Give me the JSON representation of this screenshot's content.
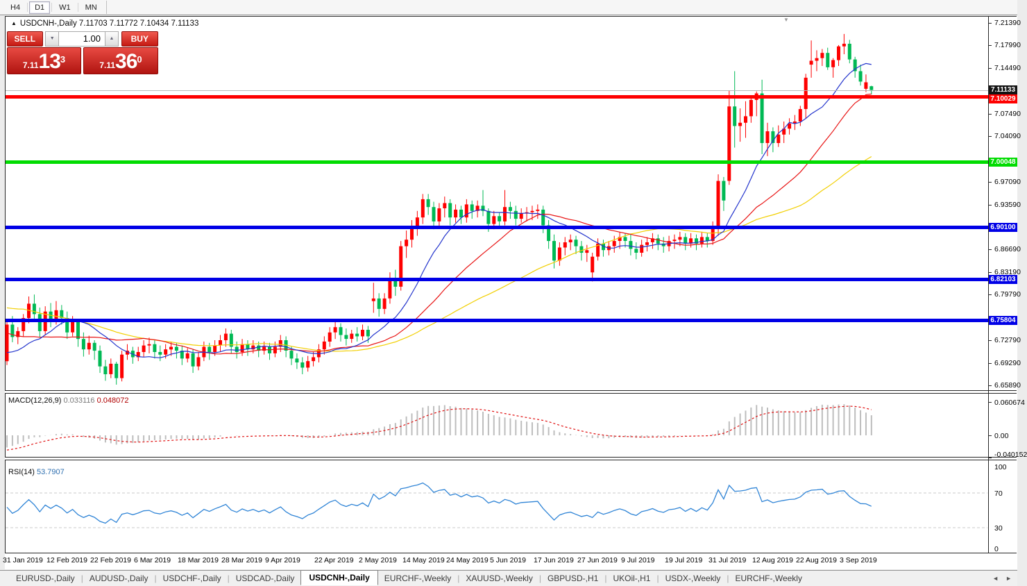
{
  "toolbar": {
    "timeframes": [
      {
        "label": "H4",
        "active": false
      },
      {
        "label": "D1",
        "active": true
      },
      {
        "label": "W1",
        "active": false
      },
      {
        "label": "MN",
        "active": false
      }
    ]
  },
  "chart": {
    "ohlc_line": "USDCNH-,Daily 7.11703 7.11772 7.10434 7.11133",
    "shift_marker_icon": "▼",
    "trade_panel": {
      "sell_label": "SELL",
      "buy_label": "BUY",
      "volume": "1.00",
      "spin_down_icon": "▼",
      "spin_up_icon": "▲",
      "sell_price": {
        "small": "7.11",
        "big": "13",
        "sup": "3"
      },
      "buy_price": {
        "small": "7.11",
        "big": "36",
        "sup": "0"
      }
    }
  },
  "price_axis": {
    "ticks": [
      {
        "label": "7.21390",
        "value": 7.2139
      },
      {
        "label": "7.17990",
        "value": 7.1799
      },
      {
        "label": "7.14490",
        "value": 7.1449
      },
      {
        "label": "7.07490",
        "value": 7.0749
      },
      {
        "label": "7.04090",
        "value": 7.0409
      },
      {
        "label": "6.97090",
        "value": 6.9709
      },
      {
        "label": "6.93590",
        "value": 6.9359
      },
      {
        "label": "6.86690",
        "value": 6.8669
      },
      {
        "label": "6.83190",
        "value": 6.8319
      },
      {
        "label": "6.79790",
        "value": 6.7979
      },
      {
        "label": "6.72790",
        "value": 6.7279
      },
      {
        "label": "6.69290",
        "value": 6.6929
      },
      {
        "label": "6.65890",
        "value": 6.6589
      }
    ],
    "current": {
      "label": "7.11133",
      "value": 7.11133,
      "badge_color": "#141414",
      "line_color": "#b8b8b8"
    }
  },
  "hlines": [
    {
      "label": "7.10029",
      "value": 7.10029,
      "color": "#fe0000",
      "thickness": 5
    },
    {
      "label": "7.00048",
      "value": 7.00048,
      "color": "#00dc00",
      "thickness": 5
    },
    {
      "label": "6.90100",
      "value": 6.901,
      "color": "#0000e6",
      "thickness": 5
    },
    {
      "label": "6.82103",
      "value": 6.82103,
      "color": "#0000e6",
      "thickness": 5
    },
    {
      "label": "6.75804",
      "value": 6.75804,
      "color": "#0000e6",
      "thickness": 5
    }
  ],
  "macd": {
    "label": "MACD(12,26,9)",
    "main_value": "0.033116",
    "signal_value": "0.048072",
    "axis": [
      {
        "label": "0.060674",
        "value": 0.060674
      },
      {
        "label": "0.00",
        "value": 0
      },
      {
        "label": "-0.040152",
        "value": -0.040152
      }
    ],
    "bar_color": "#bdbdbd",
    "signal_color": "#e01010"
  },
  "rsi": {
    "label": "RSI(14)",
    "value": "53.7907",
    "axis": [
      {
        "label": "100",
        "value": 100
      },
      {
        "label": "70",
        "value": 70
      },
      {
        "label": "30",
        "value": 30
      },
      {
        "label": "0",
        "value": 0
      }
    ],
    "levels": [
      70,
      30
    ],
    "line_color": "#2f84d6",
    "level_color": "#c8c8c8"
  },
  "date_axis": [
    {
      "label": "31 Jan 2019",
      "index": 0
    },
    {
      "label": "12 Feb 2019",
      "index": 8
    },
    {
      "label": "22 Feb 2019",
      "index": 16
    },
    {
      "label": "6 Mar 2019",
      "index": 24
    },
    {
      "label": "18 Mar 2019",
      "index": 32
    },
    {
      "label": "28 Mar 2019",
      "index": 40
    },
    {
      "label": "9 Apr 2019",
      "index": 48
    },
    {
      "label": "22 Apr 2019",
      "index": 57
    },
    {
      "label": "2 May 2019",
      "index": 65
    },
    {
      "label": "14 May 2019",
      "index": 73
    },
    {
      "label": "24 May 2019",
      "index": 81
    },
    {
      "label": "5 Jun 2019",
      "index": 89
    },
    {
      "label": "17 Jun 2019",
      "index": 97
    },
    {
      "label": "27 Jun 2019",
      "index": 105
    },
    {
      "label": "9 Jul 2019",
      "index": 113
    },
    {
      "label": "19 Jul 2019",
      "index": 121
    },
    {
      "label": "31 Jul 2019",
      "index": 129
    },
    {
      "label": "12 Aug 2019",
      "index": 137
    },
    {
      "label": "22 Aug 2019",
      "index": 145
    },
    {
      "label": "3 Sep 2019",
      "index": 153
    }
  ],
  "tabs": {
    "items": [
      {
        "label": "EURUSD-,Daily",
        "active": false
      },
      {
        "label": "AUDUSD-,Daily",
        "active": false
      },
      {
        "label": "USDCHF-,Daily",
        "active": false
      },
      {
        "label": "USDCAD-,Daily",
        "active": false
      },
      {
        "label": "USDCNH-,Daily",
        "active": true
      },
      {
        "label": "EURCHF-,Weekly",
        "active": false
      },
      {
        "label": "XAUUSD-,Weekly",
        "active": false
      },
      {
        "label": "GBPUSD-,H1",
        "active": false
      },
      {
        "label": "UKOil-,H1",
        "active": false
      },
      {
        "label": "USDX-,Weekly",
        "active": false
      },
      {
        "label": "EURCHF-,Weekly",
        "active": false
      }
    ],
    "prev_icon": "◄",
    "next_icon": "►"
  },
  "chart_data": {
    "type": "candlestick",
    "symbol": "USDCNH-",
    "timeframe": "Daily",
    "y_range": {
      "top": 7.2235,
      "bottom": 6.6515
    },
    "colors": {
      "up": "#fe0000",
      "down": "#00b954",
      "ma_fast": "#2233cc",
      "ma_mid": "#e81212",
      "ma_slow": "#f2cf00"
    },
    "ma_seed_closes": [
      6.868,
      6.862,
      6.856,
      6.85,
      6.845,
      6.84,
      6.836,
      6.832,
      6.828,
      6.825,
      6.822,
      6.82,
      6.818,
      6.815,
      6.812,
      6.81,
      6.812,
      6.815,
      6.81,
      6.802,
      6.795,
      6.788,
      6.78,
      6.772,
      6.765,
      6.758,
      6.765,
      6.772,
      6.762,
      6.752,
      6.742,
      6.732,
      6.725,
      6.718,
      6.712,
      6.706,
      6.712,
      6.718,
      6.71,
      6.7,
      6.694,
      6.69,
      6.696,
      6.7
    ],
    "candles": [
      [
        6.696,
        6.758,
        6.69,
        6.752
      ],
      [
        6.752,
        6.765,
        6.725,
        6.733
      ],
      [
        6.733,
        6.748,
        6.722,
        6.742
      ],
      [
        6.742,
        6.768,
        6.734,
        6.762
      ],
      [
        6.762,
        6.795,
        6.754,
        6.784
      ],
      [
        6.784,
        6.798,
        6.76,
        6.768
      ],
      [
        6.768,
        6.778,
        6.732,
        6.742
      ],
      [
        6.742,
        6.78,
        6.736,
        6.772
      ],
      [
        6.772,
        6.785,
        6.748,
        6.758
      ],
      [
        6.758,
        6.788,
        6.752,
        6.774
      ],
      [
        6.774,
        6.782,
        6.752,
        6.762
      ],
      [
        6.762,
        6.772,
        6.73,
        6.74
      ],
      [
        6.74,
        6.765,
        6.734,
        6.756
      ],
      [
        6.756,
        6.76,
        6.718,
        6.73
      ],
      [
        6.73,
        6.74,
        6.703,
        6.714
      ],
      [
        6.714,
        6.735,
        6.706,
        6.724
      ],
      [
        6.724,
        6.728,
        6.698,
        6.712
      ],
      [
        6.712,
        6.72,
        6.678,
        6.688
      ],
      [
        6.688,
        6.698,
        6.666,
        6.676
      ],
      [
        6.676,
        6.7,
        6.67,
        6.692
      ],
      [
        6.692,
        6.695,
        6.66,
        6.67
      ],
      [
        6.67,
        6.712,
        6.665,
        6.706
      ],
      [
        6.706,
        6.722,
        6.698,
        6.712
      ],
      [
        6.712,
        6.718,
        6.692,
        6.702
      ],
      [
        6.702,
        6.718,
        6.696,
        6.71
      ],
      [
        6.71,
        6.728,
        6.702,
        6.72
      ],
      [
        6.72,
        6.732,
        6.708,
        6.722
      ],
      [
        6.722,
        6.728,
        6.7,
        6.71
      ],
      [
        6.71,
        6.72,
        6.696,
        6.706
      ],
      [
        6.706,
        6.722,
        6.7,
        6.714
      ],
      [
        6.714,
        6.726,
        6.704,
        6.718
      ],
      [
        6.718,
        6.724,
        6.7,
        6.712
      ],
      [
        6.712,
        6.72,
        6.69,
        6.7
      ],
      [
        6.7,
        6.716,
        6.694,
        6.708
      ],
      [
        6.708,
        6.714,
        6.678,
        6.688
      ],
      [
        6.688,
        6.71,
        6.682,
        6.702
      ],
      [
        6.702,
        6.726,
        6.696,
        6.718
      ],
      [
        6.718,
        6.724,
        6.698,
        6.71
      ],
      [
        6.71,
        6.728,
        6.704,
        6.72
      ],
      [
        6.72,
        6.736,
        6.71,
        6.728
      ],
      [
        6.728,
        6.746,
        6.718,
        6.738
      ],
      [
        6.738,
        6.744,
        6.708,
        6.718
      ],
      [
        6.718,
        6.726,
        6.7,
        6.71
      ],
      [
        6.71,
        6.73,
        6.704,
        6.722
      ],
      [
        6.722,
        6.728,
        6.704,
        6.714
      ],
      [
        6.714,
        6.728,
        6.708,
        6.72
      ],
      [
        6.72,
        6.726,
        6.702,
        6.712
      ],
      [
        6.712,
        6.726,
        6.706,
        6.718
      ],
      [
        6.718,
        6.724,
        6.698,
        6.708
      ],
      [
        6.708,
        6.726,
        6.702,
        6.718
      ],
      [
        6.718,
        6.736,
        6.71,
        6.728
      ],
      [
        6.728,
        6.734,
        6.702,
        6.712
      ],
      [
        6.712,
        6.718,
        6.69,
        6.7
      ],
      [
        6.7,
        6.708,
        6.684,
        6.694
      ],
      [
        6.694,
        6.702,
        6.676,
        6.686
      ],
      [
        6.686,
        6.704,
        6.68,
        6.696
      ],
      [
        6.696,
        6.71,
        6.688,
        6.702
      ],
      [
        6.702,
        6.722,
        6.694,
        6.714
      ],
      [
        6.714,
        6.734,
        6.706,
        6.726
      ],
      [
        6.726,
        6.748,
        6.718,
        6.74
      ],
      [
        6.74,
        6.756,
        6.73,
        6.748
      ],
      [
        6.748,
        6.754,
        6.726,
        6.736
      ],
      [
        6.736,
        6.746,
        6.72,
        6.73
      ],
      [
        6.73,
        6.744,
        6.724,
        6.738
      ],
      [
        6.738,
        6.748,
        6.726,
        6.734
      ],
      [
        6.734,
        6.752,
        6.728,
        6.744
      ],
      [
        6.744,
        6.75,
        6.724,
        6.734
      ],
      [
        6.788,
        6.816,
        6.77,
        6.792
      ],
      [
        6.792,
        6.8,
        6.764,
        6.776
      ],
      [
        6.776,
        6.8,
        6.768,
        6.792
      ],
      [
        6.792,
        6.832,
        6.784,
        6.822
      ],
      [
        6.822,
        6.836,
        6.796,
        6.81
      ],
      [
        6.81,
        6.88,
        6.804,
        6.872
      ],
      [
        6.872,
        6.896,
        6.854,
        6.882
      ],
      [
        6.882,
        6.912,
        6.87,
        6.902
      ],
      [
        6.902,
        6.926,
        6.888,
        6.916
      ],
      [
        6.916,
        6.952,
        6.906,
        6.944
      ],
      [
        6.944,
        6.952,
        6.92,
        6.932
      ],
      [
        6.932,
        6.94,
        6.898,
        6.91
      ],
      [
        6.91,
        6.938,
        6.902,
        6.93
      ],
      [
        6.93,
        6.948,
        6.916,
        6.938
      ],
      [
        6.938,
        6.944,
        6.904,
        6.916
      ],
      [
        6.916,
        6.936,
        6.908,
        6.928
      ],
      [
        6.928,
        6.934,
        6.906,
        6.916
      ],
      [
        6.916,
        6.944,
        6.908,
        6.936
      ],
      [
        6.936,
        6.942,
        6.914,
        6.926
      ],
      [
        6.926,
        6.942,
        6.916,
        6.934
      ],
      [
        6.934,
        6.958,
        6.918,
        6.926
      ],
      [
        6.926,
        6.93,
        6.894,
        6.906
      ],
      [
        6.906,
        6.926,
        6.898,
        6.918
      ],
      [
        6.918,
        6.924,
        6.9,
        6.91
      ],
      [
        6.91,
        6.958,
        6.904,
        6.932
      ],
      [
        6.932,
        6.94,
        6.914,
        6.926
      ],
      [
        6.926,
        6.934,
        6.904,
        6.914
      ],
      [
        6.914,
        6.93,
        6.908,
        6.922
      ],
      [
        6.922,
        6.932,
        6.91,
        6.924
      ],
      [
        6.924,
        6.934,
        6.912,
        6.926
      ],
      [
        6.926,
        6.936,
        6.914,
        6.928
      ],
      [
        6.928,
        6.934,
        6.892,
        6.904
      ],
      [
        6.904,
        6.912,
        6.868,
        6.88
      ],
      [
        6.88,
        6.89,
        6.838,
        6.85
      ],
      [
        6.85,
        6.878,
        6.842,
        6.87
      ],
      [
        6.87,
        6.886,
        6.858,
        6.878
      ],
      [
        6.878,
        6.89,
        6.866,
        6.882
      ],
      [
        6.882,
        6.888,
        6.86,
        6.872
      ],
      [
        6.872,
        6.88,
        6.85,
        6.862
      ],
      [
        6.862,
        6.874,
        6.848,
        6.866
      ],
      [
        6.832,
        6.862,
        6.818,
        6.856
      ],
      [
        6.856,
        6.884,
        6.85,
        6.876
      ],
      [
        6.876,
        6.882,
        6.856,
        6.866
      ],
      [
        6.866,
        6.88,
        6.858,
        6.872
      ],
      [
        6.872,
        6.888,
        6.862,
        6.88
      ],
      [
        6.88,
        6.894,
        6.868,
        6.886
      ],
      [
        6.886,
        6.892,
        6.87,
        6.88
      ],
      [
        6.88,
        6.89,
        6.858,
        6.868
      ],
      [
        6.868,
        6.878,
        6.852,
        6.862
      ],
      [
        6.862,
        6.882,
        6.856,
        6.874
      ],
      [
        6.874,
        6.886,
        6.864,
        6.878
      ],
      [
        6.878,
        6.892,
        6.868,
        6.884
      ],
      [
        6.884,
        6.89,
        6.866,
        6.876
      ],
      [
        6.876,
        6.886,
        6.862,
        6.872
      ],
      [
        6.872,
        6.888,
        6.864,
        6.88
      ],
      [
        6.88,
        6.89,
        6.868,
        6.882
      ],
      [
        6.882,
        6.894,
        6.872,
        6.886
      ],
      [
        6.886,
        6.892,
        6.866,
        6.876
      ],
      [
        6.876,
        6.892,
        6.87,
        6.884
      ],
      [
        6.884,
        6.89,
        6.866,
        6.876
      ],
      [
        6.876,
        6.894,
        6.87,
        6.886
      ],
      [
        6.886,
        6.892,
        6.87,
        6.88
      ],
      [
        6.88,
        6.91,
        6.874,
        6.902
      ],
      [
        6.902,
        6.982,
        6.888,
        6.972
      ],
      [
        6.972,
        6.978,
        6.926,
        6.942
      ],
      [
        6.972,
        7.11,
        6.966,
        7.086
      ],
      [
        7.086,
        7.14,
        7.023,
        7.056
      ],
      [
        7.056,
        7.083,
        7.032,
        7.061
      ],
      [
        7.061,
        7.094,
        7.038,
        7.071
      ],
      [
        7.071,
        7.103,
        7.061,
        7.096
      ],
      [
        7.096,
        7.109,
        7.071,
        7.106
      ],
      [
        7.106,
        7.127,
        7.013,
        7.03
      ],
      [
        7.03,
        7.061,
        7.01,
        7.048
      ],
      [
        7.048,
        7.054,
        7.016,
        7.03
      ],
      [
        7.03,
        7.057,
        7.024,
        7.043
      ],
      [
        7.043,
        7.063,
        7.03,
        7.052
      ],
      [
        7.052,
        7.068,
        7.043,
        7.06
      ],
      [
        7.06,
        7.073,
        7.05,
        7.063
      ],
      [
        7.063,
        7.087,
        7.056,
        7.082
      ],
      [
        7.082,
        7.136,
        7.067,
        7.13
      ],
      [
        7.15,
        7.187,
        7.13,
        7.156
      ],
      [
        7.156,
        7.172,
        7.14,
        7.16
      ],
      [
        7.16,
        7.174,
        7.148,
        7.168
      ],
      [
        7.168,
        7.176,
        7.142,
        7.146
      ],
      [
        7.146,
        7.16,
        7.13,
        7.157
      ],
      [
        7.157,
        7.18,
        7.148,
        7.178
      ],
      [
        7.178,
        7.197,
        7.166,
        7.182
      ],
      [
        7.182,
        7.188,
        7.152,
        7.158
      ],
      [
        7.158,
        7.162,
        7.13,
        7.14
      ],
      [
        7.14,
        7.15,
        7.118,
        7.124
      ],
      [
        7.113,
        7.135,
        7.108,
        7.123
      ],
      [
        7.117,
        7.1177,
        7.1043,
        7.1113
      ]
    ]
  }
}
